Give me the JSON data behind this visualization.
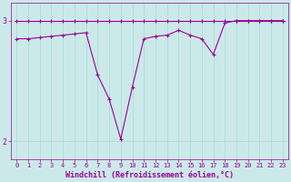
{
  "xlabel": "Windchill (Refroidissement éolien,°C)",
  "background_color": "#cce9e9",
  "line_color": "#990099",
  "x_ticks": [
    0,
    1,
    2,
    3,
    4,
    5,
    6,
    7,
    8,
    9,
    10,
    11,
    12,
    13,
    14,
    15,
    16,
    17,
    18,
    19,
    20,
    21,
    22,
    23
  ],
  "xlim": [
    -0.5,
    23.5
  ],
  "ylim": [
    1.85,
    3.15
  ],
  "yticks": [
    2,
    3
  ],
  "grid_color": "#aadddd",
  "series1_x": [
    0,
    1,
    2,
    3,
    4,
    5,
    6,
    7,
    8,
    9,
    10,
    11,
    12,
    13,
    14,
    15,
    16,
    17,
    18,
    19,
    20,
    21,
    22,
    23
  ],
  "series1_y": [
    3.0,
    3.0,
    3.0,
    3.0,
    3.0,
    3.0,
    3.0,
    3.0,
    3.0,
    3.0,
    3.0,
    3.0,
    3.0,
    3.0,
    3.0,
    3.0,
    3.0,
    3.0,
    3.0,
    3.0,
    3.0,
    3.0,
    3.0,
    3.0
  ],
  "series2_x": [
    0,
    1,
    2,
    3,
    4,
    5,
    6,
    7,
    8,
    9,
    10,
    11,
    12,
    13,
    14,
    15,
    16,
    17,
    18,
    19,
    20,
    21,
    22,
    23
  ],
  "series2_y": [
    2.85,
    2.85,
    2.86,
    2.87,
    2.88,
    2.89,
    2.9,
    2.55,
    2.35,
    2.02,
    2.45,
    2.85,
    2.87,
    2.88,
    2.92,
    2.88,
    2.85,
    2.72,
    2.98,
    3.0,
    3.0,
    3.0,
    3.0,
    3.0
  ],
  "marker_size": 3,
  "linewidth": 0.8,
  "xlabel_fontsize": 6,
  "tick_fontsize": 5
}
